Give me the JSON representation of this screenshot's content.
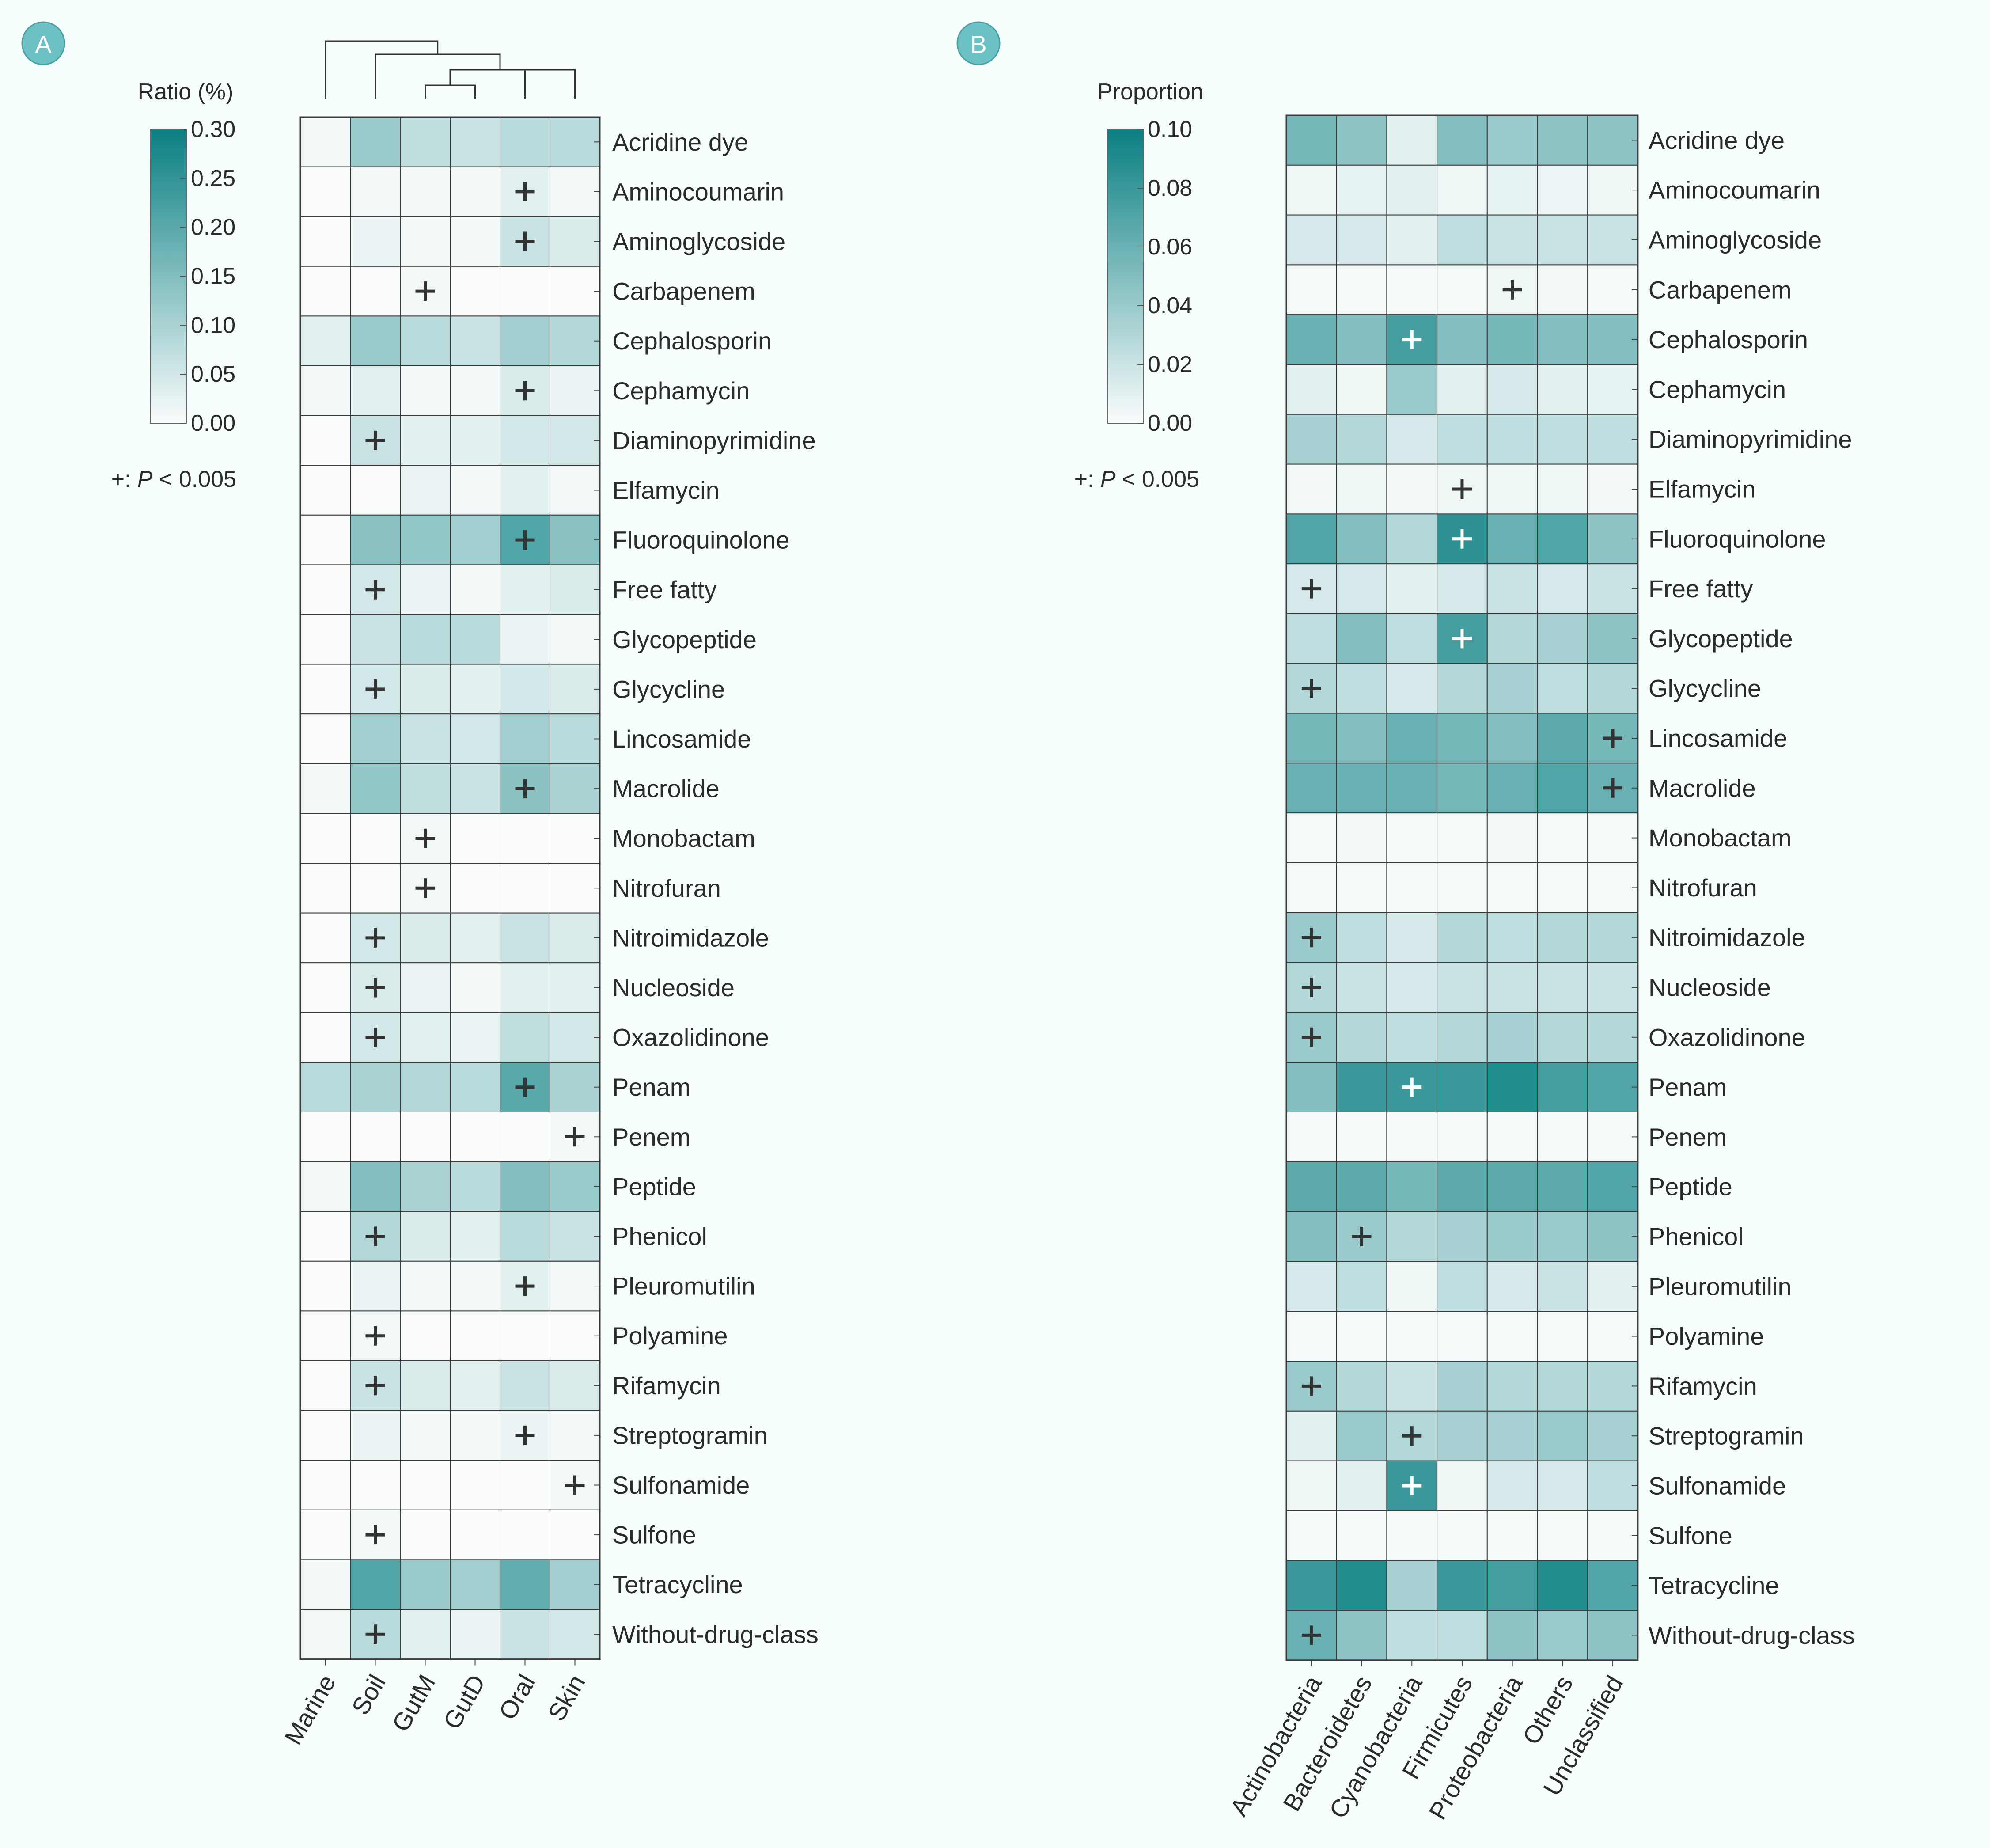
{
  "colors": {
    "background": "#f5fdfd",
    "panel_badge": "#6cc1c4",
    "cell_border": "#3a3a3a",
    "scale_low": "#fafcfc",
    "scale_high": "#0a7f82",
    "plus_dark": "#333333",
    "plus_light": "#ffffff"
  },
  "chart_data": [
    {
      "panel": "A",
      "type": "heatmap",
      "colorbar_title": "Ratio (%)",
      "colorbar_ticks": [
        "0.30",
        "0.25",
        "0.20",
        "0.15",
        "0.10",
        "0.05",
        "0.00"
      ],
      "vmin": 0.0,
      "vmax": 0.3,
      "significance_note": {
        "prefix": "+: ",
        "italic": "P",
        "suffix": " < 0.005"
      },
      "columns": [
        "Marine",
        "Soil",
        "GutM",
        "GutD",
        "Oral",
        "Skin"
      ],
      "dendrogram": "columns clustered (top)",
      "rows": [
        {
          "label": "Acridine dye",
          "values": [
            0.01,
            0.12,
            0.07,
            0.06,
            0.08,
            0.08
          ],
          "sig": []
        },
        {
          "label": "Aminocoumarin",
          "values": [
            0.0,
            0.01,
            0.01,
            0.01,
            0.03,
            0.01
          ],
          "sig": [
            4
          ]
        },
        {
          "label": "Aminoglycoside",
          "values": [
            0.0,
            0.02,
            0.01,
            0.01,
            0.06,
            0.04
          ],
          "sig": [
            4
          ]
        },
        {
          "label": "Carbapenem",
          "values": [
            0.0,
            0.0,
            0.01,
            0.0,
            0.0,
            0.0
          ],
          "sig": [
            2
          ]
        },
        {
          "label": "Cephalosporin",
          "values": [
            0.03,
            0.12,
            0.08,
            0.06,
            0.11,
            0.09
          ],
          "sig": []
        },
        {
          "label": "Cephamycin",
          "values": [
            0.01,
            0.03,
            0.01,
            0.01,
            0.04,
            0.02
          ],
          "sig": [
            4
          ]
        },
        {
          "label": "Diaminopyrimidine",
          "values": [
            0.0,
            0.06,
            0.03,
            0.03,
            0.05,
            0.05
          ],
          "sig": [
            1
          ]
        },
        {
          "label": "Elfamycin",
          "values": [
            0.0,
            0.0,
            0.02,
            0.01,
            0.03,
            0.01
          ],
          "sig": []
        },
        {
          "label": "Fluoroquinolone",
          "values": [
            0.0,
            0.14,
            0.13,
            0.11,
            0.21,
            0.14
          ],
          "sig": [
            4
          ]
        },
        {
          "label": "Free fatty",
          "values": [
            0.0,
            0.05,
            0.02,
            0.01,
            0.03,
            0.04
          ],
          "sig": [
            1
          ]
        },
        {
          "label": "Glycopeptide",
          "values": [
            0.0,
            0.06,
            0.08,
            0.08,
            0.02,
            0.01
          ],
          "sig": []
        },
        {
          "label": "Glycycline",
          "values": [
            0.0,
            0.05,
            0.04,
            0.03,
            0.05,
            0.04
          ],
          "sig": [
            1
          ]
        },
        {
          "label": "Lincosamide",
          "values": [
            0.0,
            0.11,
            0.06,
            0.05,
            0.11,
            0.08
          ],
          "sig": []
        },
        {
          "label": "Macrolide",
          "values": [
            0.01,
            0.13,
            0.07,
            0.06,
            0.14,
            0.1
          ],
          "sig": [
            4
          ]
        },
        {
          "label": "Monobactam",
          "values": [
            0.0,
            0.0,
            0.01,
            0.0,
            0.0,
            0.0
          ],
          "sig": [
            2
          ]
        },
        {
          "label": "Nitrofuran",
          "values": [
            0.0,
            0.0,
            0.01,
            0.0,
            0.0,
            0.0
          ],
          "sig": [
            2
          ]
        },
        {
          "label": "Nitroimidazole",
          "values": [
            0.0,
            0.05,
            0.04,
            0.03,
            0.06,
            0.04
          ],
          "sig": [
            1
          ]
        },
        {
          "label": "Nucleoside",
          "values": [
            0.0,
            0.04,
            0.02,
            0.01,
            0.03,
            0.03
          ],
          "sig": [
            1
          ]
        },
        {
          "label": "Oxazolidinone",
          "values": [
            0.0,
            0.05,
            0.03,
            0.02,
            0.07,
            0.05
          ],
          "sig": [
            1
          ]
        },
        {
          "label": "Penam",
          "values": [
            0.08,
            0.1,
            0.09,
            0.08,
            0.2,
            0.1
          ],
          "sig": [
            4
          ]
        },
        {
          "label": "Penem",
          "values": [
            0.0,
            0.0,
            0.0,
            0.0,
            0.0,
            0.01
          ],
          "sig": [
            5
          ]
        },
        {
          "label": "Peptide",
          "values": [
            0.01,
            0.15,
            0.1,
            0.08,
            0.15,
            0.12
          ],
          "sig": []
        },
        {
          "label": "Phenicol",
          "values": [
            0.0,
            0.09,
            0.04,
            0.03,
            0.08,
            0.06
          ],
          "sig": [
            1
          ]
        },
        {
          "label": "Pleuromutilin",
          "values": [
            0.0,
            0.02,
            0.01,
            0.01,
            0.03,
            0.01
          ],
          "sig": [
            4
          ]
        },
        {
          "label": "Polyamine",
          "values": [
            0.0,
            0.01,
            0.0,
            0.0,
            0.0,
            0.0
          ],
          "sig": [
            1
          ]
        },
        {
          "label": "Rifamycin",
          "values": [
            0.0,
            0.06,
            0.04,
            0.03,
            0.06,
            0.04
          ],
          "sig": [
            1
          ]
        },
        {
          "label": "Streptogramin",
          "values": [
            0.0,
            0.02,
            0.01,
            0.01,
            0.02,
            0.01
          ],
          "sig": [
            4
          ]
        },
        {
          "label": "Sulfonamide",
          "values": [
            0.0,
            0.0,
            0.0,
            0.0,
            0.0,
            0.01
          ],
          "sig": [
            5
          ]
        },
        {
          "label": "Sulfone",
          "values": [
            0.0,
            0.01,
            0.0,
            0.0,
            0.0,
            0.0
          ],
          "sig": [
            1
          ]
        },
        {
          "label": "Tetracycline",
          "values": [
            0.01,
            0.21,
            0.12,
            0.11,
            0.19,
            0.11
          ],
          "sig": []
        },
        {
          "label": "Without-drug-class",
          "values": [
            0.01,
            0.08,
            0.03,
            0.02,
            0.06,
            0.05
          ],
          "sig": [
            1
          ]
        }
      ]
    },
    {
      "panel": "B",
      "type": "heatmap",
      "colorbar_title": "Proportion",
      "colorbar_ticks": [
        "0.10",
        "0.08",
        "0.06",
        "0.04",
        "0.02",
        "0.00"
      ],
      "vmin": 0.0,
      "vmax": 0.1,
      "significance_note": {
        "prefix": "+: ",
        "italic": "P",
        "suffix": " < 0.005"
      },
      "columns": [
        "Actinobacteria",
        "Bacteroidetes",
        "Cyanobacteria",
        "Firmicutes",
        "Proteobacteria",
        "Others",
        "Unclassified"
      ],
      "rows": [
        {
          "label": "Acridine dye",
          "values": [
            0.055,
            0.045,
            0.01,
            0.05,
            0.04,
            0.045,
            0.045
          ],
          "sig": []
        },
        {
          "label": "Aminocoumarin",
          "values": [
            0.004,
            0.008,
            0.01,
            0.005,
            0.008,
            0.006,
            0.004
          ],
          "sig": []
        },
        {
          "label": "Aminoglycoside",
          "values": [
            0.015,
            0.015,
            0.01,
            0.025,
            0.02,
            0.02,
            0.02
          ],
          "sig": []
        },
        {
          "label": "Carbapenem",
          "values": [
            0.002,
            0.002,
            0.002,
            0.002,
            0.005,
            0.003,
            0.002
          ],
          "sig": [
            4
          ]
        },
        {
          "label": "Cephalosporin",
          "values": [
            0.06,
            0.05,
            0.075,
            0.05,
            0.055,
            0.05,
            0.05
          ],
          "sig": [
            2
          ]
        },
        {
          "label": "Cephamycin",
          "values": [
            0.01,
            0.005,
            0.04,
            0.01,
            0.015,
            0.01,
            0.008
          ],
          "sig": []
        },
        {
          "label": "Diaminopyrimidine",
          "values": [
            0.035,
            0.03,
            0.015,
            0.025,
            0.025,
            0.025,
            0.025
          ],
          "sig": []
        },
        {
          "label": "Elfamycin",
          "values": [
            0.003,
            0.005,
            0.003,
            0.005,
            0.005,
            0.005,
            0.003
          ],
          "sig": [
            3
          ]
        },
        {
          "label": "Fluoroquinolone",
          "values": [
            0.07,
            0.05,
            0.03,
            0.085,
            0.06,
            0.07,
            0.045
          ],
          "sig": [
            3
          ]
        },
        {
          "label": "Free fatty",
          "values": [
            0.015,
            0.015,
            0.01,
            0.015,
            0.02,
            0.015,
            0.02
          ],
          "sig": [
            0
          ]
        },
        {
          "label": "Glycopeptide",
          "values": [
            0.025,
            0.05,
            0.025,
            0.075,
            0.03,
            0.035,
            0.045
          ],
          "sig": [
            3
          ]
        },
        {
          "label": "Glycycline",
          "values": [
            0.03,
            0.025,
            0.015,
            0.03,
            0.035,
            0.025,
            0.03
          ],
          "sig": [
            0
          ]
        },
        {
          "label": "Lincosamide",
          "values": [
            0.055,
            0.05,
            0.06,
            0.055,
            0.05,
            0.065,
            0.055
          ],
          "sig": [
            6
          ]
        },
        {
          "label": "Macrolide",
          "values": [
            0.06,
            0.06,
            0.06,
            0.055,
            0.06,
            0.07,
            0.06
          ],
          "sig": [
            6
          ]
        },
        {
          "label": "Monobactam",
          "values": [
            0.002,
            0.003,
            0.002,
            0.002,
            0.003,
            0.002,
            0.002
          ],
          "sig": []
        },
        {
          "label": "Nitrofuran",
          "values": [
            0.002,
            0.002,
            0.002,
            0.002,
            0.002,
            0.002,
            0.002
          ],
          "sig": []
        },
        {
          "label": "Nitroimidazole",
          "values": [
            0.04,
            0.025,
            0.015,
            0.03,
            0.025,
            0.03,
            0.03
          ],
          "sig": [
            0
          ]
        },
        {
          "label": "Nucleoside",
          "values": [
            0.03,
            0.02,
            0.015,
            0.02,
            0.02,
            0.02,
            0.02
          ],
          "sig": [
            0
          ]
        },
        {
          "label": "Oxazolidinone",
          "values": [
            0.04,
            0.03,
            0.025,
            0.03,
            0.035,
            0.03,
            0.03
          ],
          "sig": [
            0
          ]
        },
        {
          "label": "Penam",
          "values": [
            0.05,
            0.08,
            0.08,
            0.08,
            0.09,
            0.075,
            0.07
          ],
          "sig": [
            2
          ]
        },
        {
          "label": "Penem",
          "values": [
            0.002,
            0.002,
            0.002,
            0.002,
            0.002,
            0.002,
            0.002
          ],
          "sig": []
        },
        {
          "label": "Peptide",
          "values": [
            0.065,
            0.065,
            0.055,
            0.065,
            0.065,
            0.065,
            0.07
          ],
          "sig": []
        },
        {
          "label": "Phenicol",
          "values": [
            0.05,
            0.04,
            0.03,
            0.035,
            0.04,
            0.04,
            0.045
          ],
          "sig": [
            1
          ]
        },
        {
          "label": "Pleuromutilin",
          "values": [
            0.015,
            0.025,
            0.005,
            0.025,
            0.015,
            0.02,
            0.01
          ],
          "sig": []
        },
        {
          "label": "Polyamine",
          "values": [
            0.002,
            0.002,
            0.002,
            0.002,
            0.002,
            0.002,
            0.002
          ],
          "sig": []
        },
        {
          "label": "Rifamycin",
          "values": [
            0.04,
            0.03,
            0.02,
            0.035,
            0.03,
            0.03,
            0.03
          ],
          "sig": [
            0
          ]
        },
        {
          "label": "Streptogramin",
          "values": [
            0.01,
            0.04,
            0.03,
            0.035,
            0.035,
            0.04,
            0.035
          ],
          "sig": [
            2
          ]
        },
        {
          "label": "Sulfonamide",
          "values": [
            0.005,
            0.01,
            0.08,
            0.005,
            0.015,
            0.015,
            0.025
          ],
          "sig": [
            2
          ]
        },
        {
          "label": "Sulfone",
          "values": [
            0.002,
            0.002,
            0.002,
            0.002,
            0.002,
            0.002,
            0.002
          ],
          "sig": []
        },
        {
          "label": "Tetracycline",
          "values": [
            0.08,
            0.09,
            0.035,
            0.08,
            0.075,
            0.09,
            0.07
          ],
          "sig": []
        },
        {
          "label": "Without-drug-class",
          "values": [
            0.06,
            0.045,
            0.025,
            0.025,
            0.045,
            0.04,
            0.045
          ],
          "sig": [
            0
          ]
        }
      ]
    }
  ]
}
